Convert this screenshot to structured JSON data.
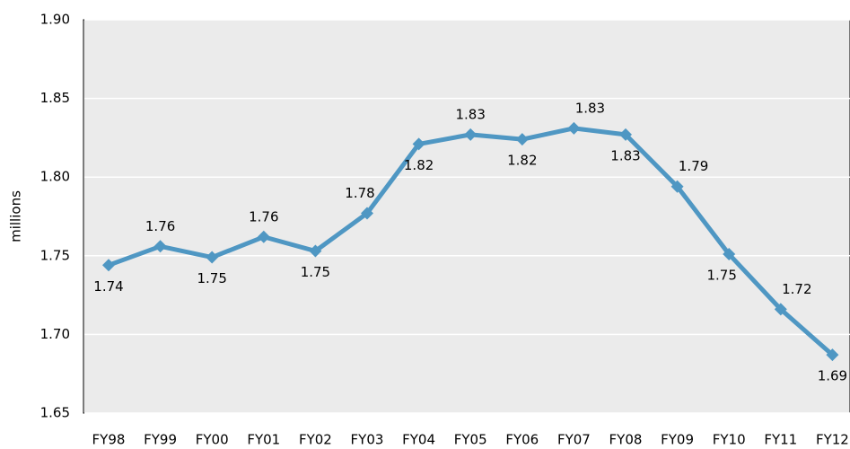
{
  "chart_data": {
    "type": "line",
    "y_label": "millions",
    "categories": [
      "FY98",
      "FY99",
      "FY00",
      "FY01",
      "FY02",
      "FY03",
      "FY04",
      "FY05",
      "FY06",
      "FY07",
      "FY08",
      "FY09",
      "FY10",
      "FY11",
      "FY12"
    ],
    "series": [
      {
        "color": "#4f97c3",
        "values": [
          1.744,
          1.756,
          1.749,
          1.762,
          1.753,
          1.777,
          1.821,
          1.827,
          1.824,
          1.831,
          1.827,
          1.794,
          1.751,
          1.716,
          1.687
        ],
        "value_labels": [
          "1.74",
          "1.76",
          "1.75",
          "1.76",
          "1.75",
          "1.78",
          "1.82",
          "1.83",
          "1.82",
          "1.83",
          "1.83",
          "1.79",
          "1.75",
          "1.72",
          "1.69"
        ]
      }
    ],
    "ylim": [
      1.65,
      1.9
    ],
    "yticks": [
      1.65,
      {
        "value": 1.7,
        "label": "1.70"
      },
      1.75,
      {
        "value": 1.8,
        "label": "1.80"
      },
      1.85,
      {
        "value": 1.9,
        "label": "1.90"
      }
    ],
    "grid": true
  }
}
